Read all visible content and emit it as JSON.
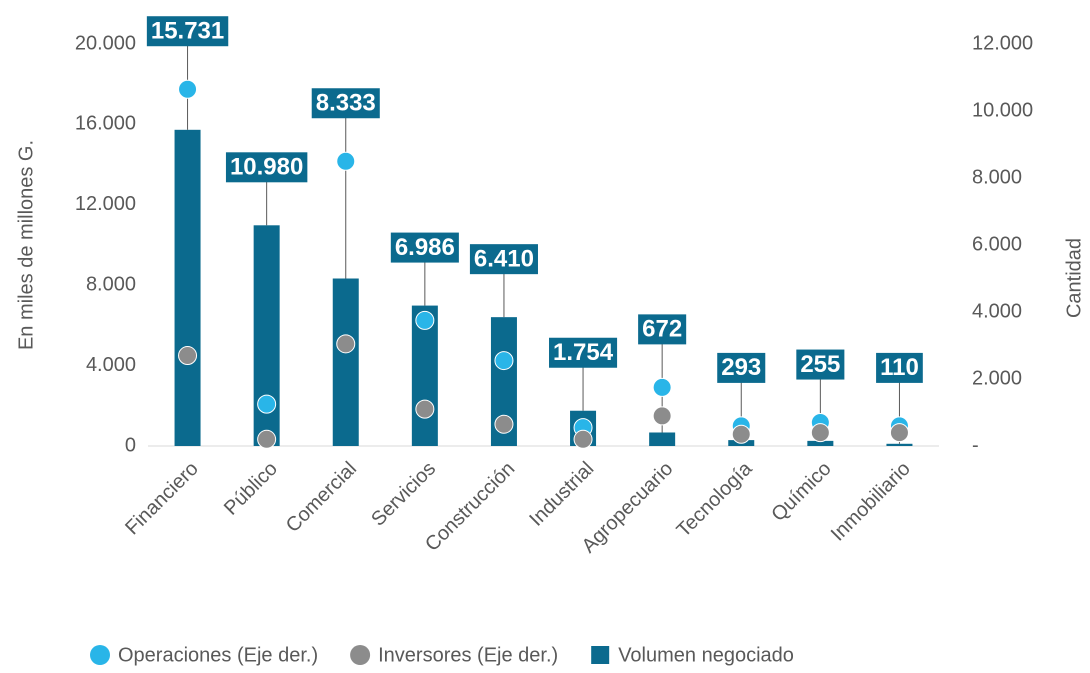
{
  "chart_data": {
    "type": "bar",
    "y_label": "En miles de millones G.",
    "y2_label": "Cantidad",
    "categories": [
      "Financiero",
      "Público",
      "Comercial",
      "Servicios",
      "Construcción",
      "Industrial",
      "Agropecuario",
      "Tecnología",
      "Químico",
      "Inmobiliario"
    ],
    "series": [
      {
        "name": "Operaciones (Eje der.)",
        "type": "scatter",
        "axis": "y2",
        "color": "#29b5e8",
        "values": [
          10650,
          1250,
          8500,
          3750,
          2550,
          550,
          1750,
          600,
          700,
          600
        ]
      },
      {
        "name": "Inversores (Eje der.)",
        "type": "scatter",
        "axis": "y2",
        "color": "#8c8c8c",
        "values": [
          2700,
          200,
          3050,
          1100,
          650,
          200,
          900,
          350,
          400,
          400
        ]
      },
      {
        "name": "Volumen negociado",
        "type": "bar",
        "axis": "y",
        "color": "#0b6a8e",
        "values": [
          15731,
          10980,
          8333,
          6986,
          6410,
          1754,
          672,
          293,
          255,
          110
        ],
        "value_labels": [
          "15.731",
          "10.980",
          "8.333",
          "6.986",
          "6.410",
          "1.754",
          "672",
          "293",
          "255",
          "110"
        ]
      }
    ],
    "ylim": [
      0,
      20000
    ],
    "yticks": [
      0,
      {
        "value": 4000,
        "label": "4.000"
      },
      {
        "value": 8000,
        "label": "8.000"
      },
      {
        "value": 12000,
        "label": "12.000"
      },
      {
        "value": 16000,
        "label": "16.000"
      },
      {
        "value": 20000,
        "label": "20.000"
      }
    ],
    "y2lim": [
      0,
      12000
    ],
    "y2ticks": [
      {
        "value": 0,
        "label": "-"
      },
      {
        "value": 2000,
        "label": "2.000"
      },
      {
        "value": 4000,
        "label": "4.000"
      },
      {
        "value": 6000,
        "label": "6.000"
      },
      {
        "value": 8000,
        "label": "8.000"
      },
      {
        "value": 10000,
        "label": "10.000"
      },
      {
        "value": 12000,
        "label": "12.000"
      }
    ],
    "legend": "bottom"
  }
}
